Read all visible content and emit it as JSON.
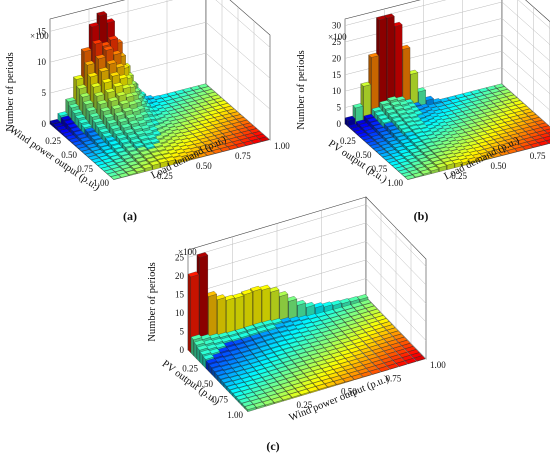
{
  "chart_data": [
    {
      "panel_label": "(a)",
      "type": "bar3d",
      "zlabel": "Number of periods",
      "zscale_label": "×100",
      "zticks": [
        "0",
        "5",
        "10",
        "15"
      ],
      "zlim": [
        0,
        17
      ],
      "xlabel": "Wind power output (p.u.)",
      "xticks": [
        "0.25",
        "0.50",
        "0.75",
        "1.00"
      ],
      "ylabel": "Load demand (p.u.)",
      "yticks": [
        "0.25",
        "0.50",
        "0.75",
        "1.00"
      ],
      "peak": 16,
      "shape": "peak at low wind output, mid load demand; decays toward high wind output",
      "colormap": "jet"
    },
    {
      "panel_label": "(b)",
      "type": "bar3d",
      "zlabel": "Number of periods",
      "zscale_label": "×100",
      "zticks": [
        "0",
        "5",
        "10",
        "15",
        "20",
        "25",
        "30"
      ],
      "zlim": [
        0,
        32
      ],
      "xlabel": "PV output (p.u.)",
      "xticks": [
        "0.25",
        "0.50",
        "0.75",
        "1.00"
      ],
      "ylabel": "Load demand (p.u.)",
      "yticks": [
        "0.25",
        "0.50",
        "0.75",
        "1.00"
      ],
      "peak": 30,
      "shape": "sharp peak at zero PV output, mid load demand",
      "colormap": "jet"
    },
    {
      "panel_label": "(c)",
      "type": "bar3d",
      "zlabel": "Number of periods",
      "zscale_label": "×100",
      "zticks": [
        "0",
        "5",
        "10",
        "15",
        "20",
        "25"
      ],
      "zlim": [
        0,
        27
      ],
      "xlabel": "PV output (p.u.)",
      "xticks": [
        "0.25",
        "0.50",
        "0.75",
        "1.00"
      ],
      "ylabel": "Wind power output (p.u.)",
      "yticks": [
        "0.25",
        "0.50",
        "0.75",
        "1.00"
      ],
      "peak": 25,
      "shape": "peak at zero PV and low wind output; ridge along low PV",
      "colormap": "jet"
    }
  ]
}
